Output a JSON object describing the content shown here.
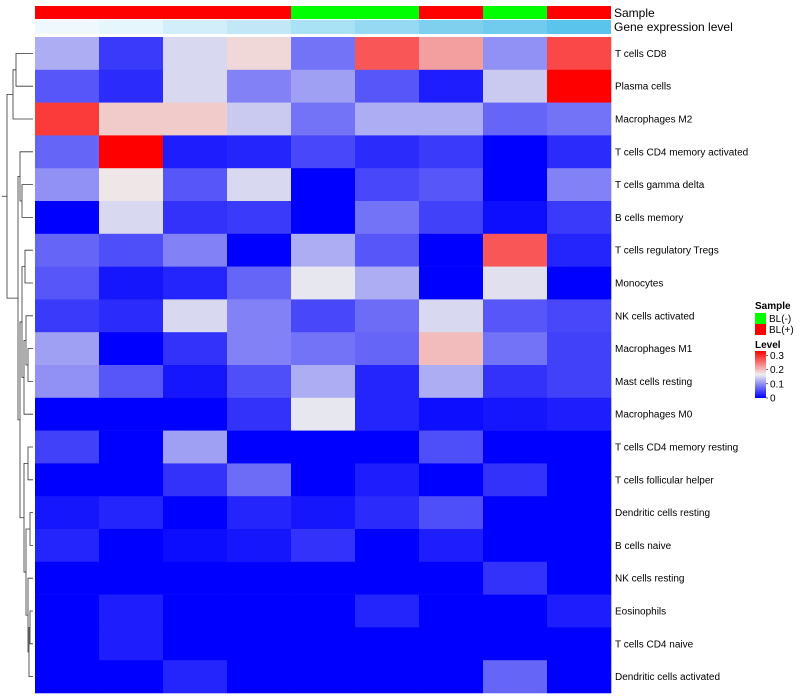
{
  "chart_data": {
    "type": "heatmap",
    "title": "",
    "annotation_tracks": [
      {
        "name": "Sample",
        "values": [
          "BL(+)",
          "BL(+)",
          "BL(+)",
          "BL(+)",
          "BL(-)",
          "BL(-)",
          "BL(+)",
          "BL(-)",
          "BL(+)"
        ],
        "colors": {
          "BL(-)": "#00ff00",
          "BL(+)": "#ff0000"
        }
      },
      {
        "name": "Gene expression level",
        "values": [
          0.04,
          0.05,
          0.12,
          0.18,
          0.22,
          0.26,
          0.35,
          0.38,
          0.43
        ],
        "colors": [
          "#eef8fd",
          "#e6f6fd",
          "#d2eefa",
          "#c2e8f8",
          "#a9e1f5",
          "#95d9f3",
          "#7fd0ef",
          "#71cbee",
          "#5bc4ec"
        ]
      }
    ],
    "rows": [
      "T cells CD8",
      "Plasma cells",
      "Macrophages M2",
      "T cells CD4 memory activated",
      "T cells gamma delta",
      "B cells memory",
      "T cells regulatory  Tregs",
      "Monocytes",
      "NK cells activated",
      "Macrophages M1",
      "Mast cells resting",
      "Macrophages M0",
      "T cells CD4 memory resting",
      "T cells follicular helper",
      "Dendritic cells resting",
      "B cells naive",
      "NK cells resting",
      "Eosinophils",
      "T cells CD4 naive",
      "Dendritic cells activated"
    ],
    "values": [
      [
        0.12,
        0.04,
        0.15,
        0.18,
        0.08,
        0.27,
        0.22,
        0.1,
        0.28
      ],
      [
        0.06,
        0.03,
        0.15,
        0.09,
        0.11,
        0.06,
        0.02,
        0.14,
        0.33
      ],
      [
        0.29,
        0.19,
        0.19,
        0.14,
        0.08,
        0.12,
        0.12,
        0.07,
        0.08
      ],
      [
        0.07,
        0.33,
        0.02,
        0.025,
        0.05,
        0.03,
        0.04,
        0.0,
        0.03
      ],
      [
        0.1,
        0.17,
        0.06,
        0.15,
        0.0,
        0.05,
        0.06,
        0.0,
        0.09
      ],
      [
        0.0,
        0.15,
        0.035,
        0.04,
        0.0,
        0.08,
        0.045,
        0.01,
        0.04
      ],
      [
        0.07,
        0.055,
        0.09,
        0.0,
        0.12,
        0.06,
        0.0,
        0.27,
        0.025
      ],
      [
        0.06,
        0.015,
        0.025,
        0.07,
        0.16,
        0.12,
        0.0,
        0.155,
        0.0
      ],
      [
        0.04,
        0.03,
        0.15,
        0.09,
        0.05,
        0.075,
        0.15,
        0.06,
        0.05
      ],
      [
        0.11,
        0.0,
        0.035,
        0.09,
        0.08,
        0.07,
        0.2,
        0.08,
        0.045
      ],
      [
        0.1,
        0.06,
        0.015,
        0.055,
        0.12,
        0.025,
        0.12,
        0.035,
        0.045
      ],
      [
        0.0,
        0.0,
        0.0,
        0.035,
        0.16,
        0.025,
        0.01,
        0.015,
        0.02
      ],
      [
        0.045,
        0.0,
        0.11,
        0.0,
        0.0,
        0.0,
        0.055,
        0.0,
        0.0
      ],
      [
        0.0,
        0.0,
        0.035,
        0.075,
        0.0,
        0.02,
        0.0,
        0.035,
        0.0
      ],
      [
        0.015,
        0.025,
        0.0,
        0.025,
        0.015,
        0.03,
        0.055,
        0.0,
        0.0
      ],
      [
        0.025,
        0.0,
        0.008,
        0.015,
        0.035,
        0.0,
        0.02,
        0.0,
        0.0
      ],
      [
        0.0,
        0.0,
        0.0,
        0.0,
        0.0,
        0.0,
        0.0,
        0.035,
        0.0
      ],
      [
        0.0,
        0.02,
        0.0,
        0.0,
        0.0,
        0.025,
        0.0,
        0.0,
        0.02
      ],
      [
        0.0,
        0.02,
        0.0,
        0.0,
        0.0,
        0.0,
        0.0,
        0.0,
        0.0
      ],
      [
        0.0,
        0.0,
        0.025,
        0.0,
        0.0,
        0.0,
        0.0,
        0.07,
        0.0
      ]
    ],
    "color_scale": {
      "name": "Level",
      "min": 0,
      "max": 0.33,
      "ticks": [
        "0.3",
        "0.2",
        "0.1",
        "0"
      ],
      "tick_values": [
        0.3,
        0.2,
        0.1,
        0
      ],
      "stops": [
        {
          "value": 0,
          "color": "#0000ff"
        },
        {
          "value": 0.165,
          "color": "#eeeeee"
        },
        {
          "value": 0.33,
          "color": "#ff0000"
        }
      ]
    },
    "legend": {
      "title": "Sample",
      "entries": [
        {
          "label": "BL(-)",
          "color": "#00ff00"
        },
        {
          "label": "BL(+)",
          "color": "#ff0000"
        }
      ],
      "placement": "right"
    },
    "row_dendrogram": true
  }
}
